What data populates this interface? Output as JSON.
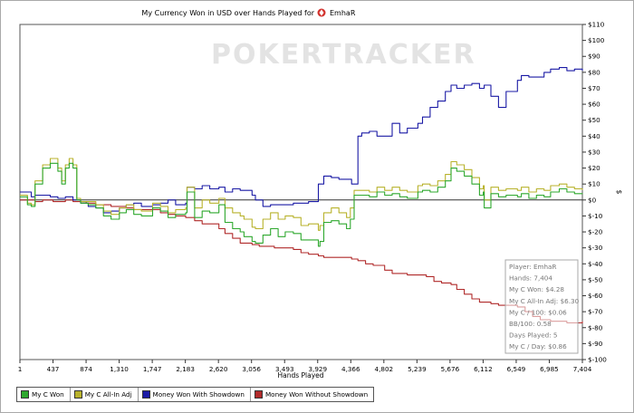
{
  "chart_data": {
    "type": "line",
    "title": "My Currency Won in USD over Hands Played for",
    "player": "EmhaR",
    "xlabel": "Hands Played",
    "ylabel": "$",
    "xlim": [
      1,
      7404
    ],
    "ylim": [
      -100,
      110
    ],
    "x_ticks": [
      "1",
      "437",
      "874",
      "1,310",
      "1,747",
      "2,183",
      "2,620",
      "3,056",
      "3,493",
      "3,929",
      "4,366",
      "4,802",
      "5,239",
      "5,676",
      "6,112",
      "6,549",
      "6,985",
      "7,404"
    ],
    "y_ticks": [
      "$110",
      "$100",
      "$90",
      "$80",
      "$70",
      "$60",
      "$50",
      "$40",
      "$30",
      "$20",
      "$10",
      "$0",
      "$-10",
      "$-20",
      "$-30",
      "$-40",
      "$-50",
      "$-60",
      "$-70",
      "$-80",
      "$-90",
      "$-100"
    ],
    "watermark": "POKERTRACKER",
    "series": [
      {
        "name": "My C Won",
        "color": "#2ea82e",
        "points": [
          [
            1,
            2
          ],
          [
            100,
            -3
          ],
          [
            150,
            -4
          ],
          [
            200,
            10
          ],
          [
            300,
            20
          ],
          [
            400,
            23
          ],
          [
            500,
            18
          ],
          [
            550,
            10
          ],
          [
            600,
            20
          ],
          [
            650,
            23
          ],
          [
            700,
            20
          ],
          [
            750,
            0
          ],
          [
            800,
            -2
          ],
          [
            900,
            -3
          ],
          [
            1000,
            -5
          ],
          [
            1100,
            -10
          ],
          [
            1200,
            -12
          ],
          [
            1310,
            -8
          ],
          [
            1400,
            -6
          ],
          [
            1500,
            -9
          ],
          [
            1600,
            -10
          ],
          [
            1747,
            -5
          ],
          [
            1850,
            -7
          ],
          [
            1950,
            -11
          ],
          [
            2050,
            -9
          ],
          [
            2183,
            -8
          ],
          [
            2200,
            5
          ],
          [
            2300,
            -11
          ],
          [
            2400,
            -7
          ],
          [
            2500,
            -8
          ],
          [
            2620,
            -3
          ],
          [
            2700,
            -14
          ],
          [
            2800,
            -18
          ],
          [
            2900,
            -20
          ],
          [
            2950,
            -23
          ],
          [
            3056,
            -26
          ],
          [
            3100,
            -27
          ],
          [
            3200,
            -22
          ],
          [
            3300,
            -18
          ],
          [
            3400,
            -23
          ],
          [
            3493,
            -20
          ],
          [
            3600,
            -21
          ],
          [
            3700,
            -25
          ],
          [
            3800,
            -25
          ],
          [
            3929,
            -29
          ],
          [
            3950,
            -26
          ],
          [
            4000,
            -14
          ],
          [
            4100,
            -13
          ],
          [
            4200,
            -15
          ],
          [
            4300,
            -18
          ],
          [
            4350,
            -12
          ],
          [
            4400,
            3
          ],
          [
            4500,
            3
          ],
          [
            4600,
            2
          ],
          [
            4700,
            5
          ],
          [
            4802,
            3
          ],
          [
            4900,
            4
          ],
          [
            5000,
            2
          ],
          [
            5100,
            1
          ],
          [
            5239,
            5
          ],
          [
            5300,
            6
          ],
          [
            5400,
            5
          ],
          [
            5500,
            8
          ],
          [
            5600,
            12
          ],
          [
            5676,
            20
          ],
          [
            5750,
            18
          ],
          [
            5850,
            15
          ],
          [
            5950,
            10
          ],
          [
            6050,
            3
          ],
          [
            6100,
            5
          ],
          [
            6112,
            -5
          ],
          [
            6200,
            4
          ],
          [
            6300,
            2
          ],
          [
            6400,
            3
          ],
          [
            6549,
            2
          ],
          [
            6600,
            4
          ],
          [
            6700,
            1
          ],
          [
            6800,
            3
          ],
          [
            6900,
            2
          ],
          [
            6985,
            5
          ],
          [
            7100,
            7
          ],
          [
            7200,
            5
          ],
          [
            7300,
            4
          ],
          [
            7404,
            4.28
          ]
        ]
      },
      {
        "name": "My C All-In Adj",
        "color": "#b8b22c",
        "points": [
          [
            1,
            3
          ],
          [
            100,
            -2
          ],
          [
            150,
            -3
          ],
          [
            200,
            12
          ],
          [
            300,
            22
          ],
          [
            400,
            26
          ],
          [
            500,
            20
          ],
          [
            550,
            12
          ],
          [
            600,
            22
          ],
          [
            650,
            26
          ],
          [
            700,
            22
          ],
          [
            750,
            1
          ],
          [
            800,
            -1
          ],
          [
            900,
            -1
          ],
          [
            1000,
            -3
          ],
          [
            1100,
            -7
          ],
          [
            1200,
            -9
          ],
          [
            1310,
            -5
          ],
          [
            1400,
            -3
          ],
          [
            1500,
            -6
          ],
          [
            1600,
            -7
          ],
          [
            1747,
            -2
          ],
          [
            1850,
            -4
          ],
          [
            1950,
            -8
          ],
          [
            2050,
            -6
          ],
          [
            2183,
            -5
          ],
          [
            2200,
            8
          ],
          [
            2300,
            -5
          ],
          [
            2400,
            0
          ],
          [
            2500,
            -2
          ],
          [
            2620,
            1
          ],
          [
            2700,
            -5
          ],
          [
            2800,
            -8
          ],
          [
            2900,
            -10
          ],
          [
            2950,
            -12
          ],
          [
            3056,
            -17
          ],
          [
            3100,
            -18
          ],
          [
            3200,
            -12
          ],
          [
            3300,
            -8
          ],
          [
            3400,
            -12
          ],
          [
            3493,
            -10
          ],
          [
            3600,
            -11
          ],
          [
            3700,
            -16
          ],
          [
            3800,
            -15
          ],
          [
            3929,
            -19
          ],
          [
            3950,
            -16
          ],
          [
            4000,
            -8
          ],
          [
            4100,
            -5
          ],
          [
            4200,
            -8
          ],
          [
            4300,
            -11
          ],
          [
            4350,
            -5
          ],
          [
            4400,
            6
          ],
          [
            4500,
            6
          ],
          [
            4600,
            5
          ],
          [
            4700,
            8
          ],
          [
            4802,
            6
          ],
          [
            4900,
            8
          ],
          [
            5000,
            6
          ],
          [
            5100,
            5
          ],
          [
            5239,
            9
          ],
          [
            5300,
            10
          ],
          [
            5400,
            9
          ],
          [
            5500,
            12
          ],
          [
            5600,
            16
          ],
          [
            5676,
            24
          ],
          [
            5750,
            22
          ],
          [
            5850,
            19
          ],
          [
            5950,
            14
          ],
          [
            6050,
            7
          ],
          [
            6100,
            9
          ],
          [
            6112,
            0
          ],
          [
            6200,
            8
          ],
          [
            6300,
            6
          ],
          [
            6400,
            7
          ],
          [
            6549,
            6
          ],
          [
            6600,
            8
          ],
          [
            6700,
            5
          ],
          [
            6800,
            7
          ],
          [
            6900,
            6
          ],
          [
            6985,
            9
          ],
          [
            7100,
            10
          ],
          [
            7200,
            8
          ],
          [
            7300,
            7
          ],
          [
            7404,
            6.3
          ]
        ]
      },
      {
        "name": "Money Won With Showdown",
        "color": "#1a1aa5",
        "points": [
          [
            1,
            5
          ],
          [
            150,
            2
          ],
          [
            200,
            3
          ],
          [
            300,
            3
          ],
          [
            400,
            2
          ],
          [
            500,
            1
          ],
          [
            600,
            2
          ],
          [
            700,
            0
          ],
          [
            800,
            -2
          ],
          [
            900,
            -4
          ],
          [
            1000,
            -5
          ],
          [
            1100,
            -8
          ],
          [
            1200,
            -7
          ],
          [
            1310,
            -5
          ],
          [
            1400,
            -3
          ],
          [
            1500,
            -2
          ],
          [
            1600,
            -4
          ],
          [
            1747,
            -3
          ],
          [
            1850,
            -2
          ],
          [
            1950,
            0
          ],
          [
            2050,
            -3
          ],
          [
            2183,
            -2
          ],
          [
            2200,
            8
          ],
          [
            2300,
            7
          ],
          [
            2400,
            9
          ],
          [
            2500,
            7
          ],
          [
            2620,
            8
          ],
          [
            2700,
            5
          ],
          [
            2800,
            7
          ],
          [
            2900,
            6
          ],
          [
            3056,
            3
          ],
          [
            3100,
            0
          ],
          [
            3200,
            -4
          ],
          [
            3300,
            -3
          ],
          [
            3493,
            -3
          ],
          [
            3600,
            -2
          ],
          [
            3700,
            -2
          ],
          [
            3800,
            -1
          ],
          [
            3929,
            10
          ],
          [
            4000,
            15
          ],
          [
            4100,
            14
          ],
          [
            4200,
            13
          ],
          [
            4366,
            10
          ],
          [
            4450,
            40
          ],
          [
            4500,
            42
          ],
          [
            4600,
            43
          ],
          [
            4700,
            40
          ],
          [
            4802,
            40
          ],
          [
            4900,
            48
          ],
          [
            5000,
            42
          ],
          [
            5100,
            45
          ],
          [
            5239,
            48
          ],
          [
            5300,
            52
          ],
          [
            5400,
            58
          ],
          [
            5500,
            62
          ],
          [
            5600,
            68
          ],
          [
            5676,
            72
          ],
          [
            5750,
            70
          ],
          [
            5850,
            72
          ],
          [
            5950,
            73
          ],
          [
            6050,
            70
          ],
          [
            6112,
            72
          ],
          [
            6200,
            65
          ],
          [
            6300,
            58
          ],
          [
            6400,
            68
          ],
          [
            6549,
            75
          ],
          [
            6600,
            78
          ],
          [
            6700,
            77
          ],
          [
            6800,
            77
          ],
          [
            6900,
            80
          ],
          [
            6985,
            82
          ],
          [
            7100,
            83
          ],
          [
            7200,
            81
          ],
          [
            7300,
            82
          ],
          [
            7404,
            81
          ]
        ]
      },
      {
        "name": "Money Won Without Showdown",
        "color": "#b02a2a",
        "points": [
          [
            1,
            0
          ],
          [
            100,
            0
          ],
          [
            200,
            -1
          ],
          [
            300,
            0
          ],
          [
            437,
            -1
          ],
          [
            500,
            -1
          ],
          [
            600,
            0
          ],
          [
            700,
            -1
          ],
          [
            874,
            -2
          ],
          [
            1000,
            -3
          ],
          [
            1100,
            -3
          ],
          [
            1200,
            -4
          ],
          [
            1310,
            -4
          ],
          [
            1400,
            -5
          ],
          [
            1500,
            -6
          ],
          [
            1600,
            -6
          ],
          [
            1747,
            -6
          ],
          [
            1850,
            -8
          ],
          [
            1950,
            -9
          ],
          [
            2050,
            -10
          ],
          [
            2183,
            -11
          ],
          [
            2300,
            -13
          ],
          [
            2400,
            -15
          ],
          [
            2500,
            -15
          ],
          [
            2620,
            -18
          ],
          [
            2700,
            -21
          ],
          [
            2800,
            -24
          ],
          [
            2900,
            -27
          ],
          [
            3056,
            -28
          ],
          [
            3150,
            -29
          ],
          [
            3250,
            -29
          ],
          [
            3350,
            -30
          ],
          [
            3493,
            -30
          ],
          [
            3600,
            -31
          ],
          [
            3700,
            -33
          ],
          [
            3800,
            -34
          ],
          [
            3929,
            -35
          ],
          [
            4000,
            -36
          ],
          [
            4100,
            -36
          ],
          [
            4200,
            -36
          ],
          [
            4366,
            -37
          ],
          [
            4450,
            -38
          ],
          [
            4550,
            -40
          ],
          [
            4650,
            -41
          ],
          [
            4802,
            -44
          ],
          [
            4900,
            -46
          ],
          [
            5000,
            -46
          ],
          [
            5100,
            -47
          ],
          [
            5239,
            -47
          ],
          [
            5350,
            -48
          ],
          [
            5450,
            -51
          ],
          [
            5550,
            -52
          ],
          [
            5676,
            -53
          ],
          [
            5750,
            -56
          ],
          [
            5850,
            -59
          ],
          [
            5950,
            -62
          ],
          [
            6050,
            -64
          ],
          [
            6112,
            -64
          ],
          [
            6200,
            -65
          ],
          [
            6300,
            -66
          ],
          [
            6400,
            -66
          ],
          [
            6549,
            -67
          ],
          [
            6650,
            -70
          ],
          [
            6750,
            -73
          ],
          [
            6850,
            -75
          ],
          [
            6985,
            -76
          ],
          [
            7100,
            -76
          ],
          [
            7200,
            -77
          ],
          [
            7300,
            -77
          ],
          [
            7404,
            -76
          ]
        ]
      }
    ],
    "stats": [
      "Player: EmhaR",
      "Hands: 7,404",
      "My C Won: $4.28",
      "My C All-In Adj: $6.30",
      "My C / 100: $0.06",
      "BB/100: 0.58",
      "Days Played: 5",
      "My C / Day: $0.86"
    ]
  }
}
